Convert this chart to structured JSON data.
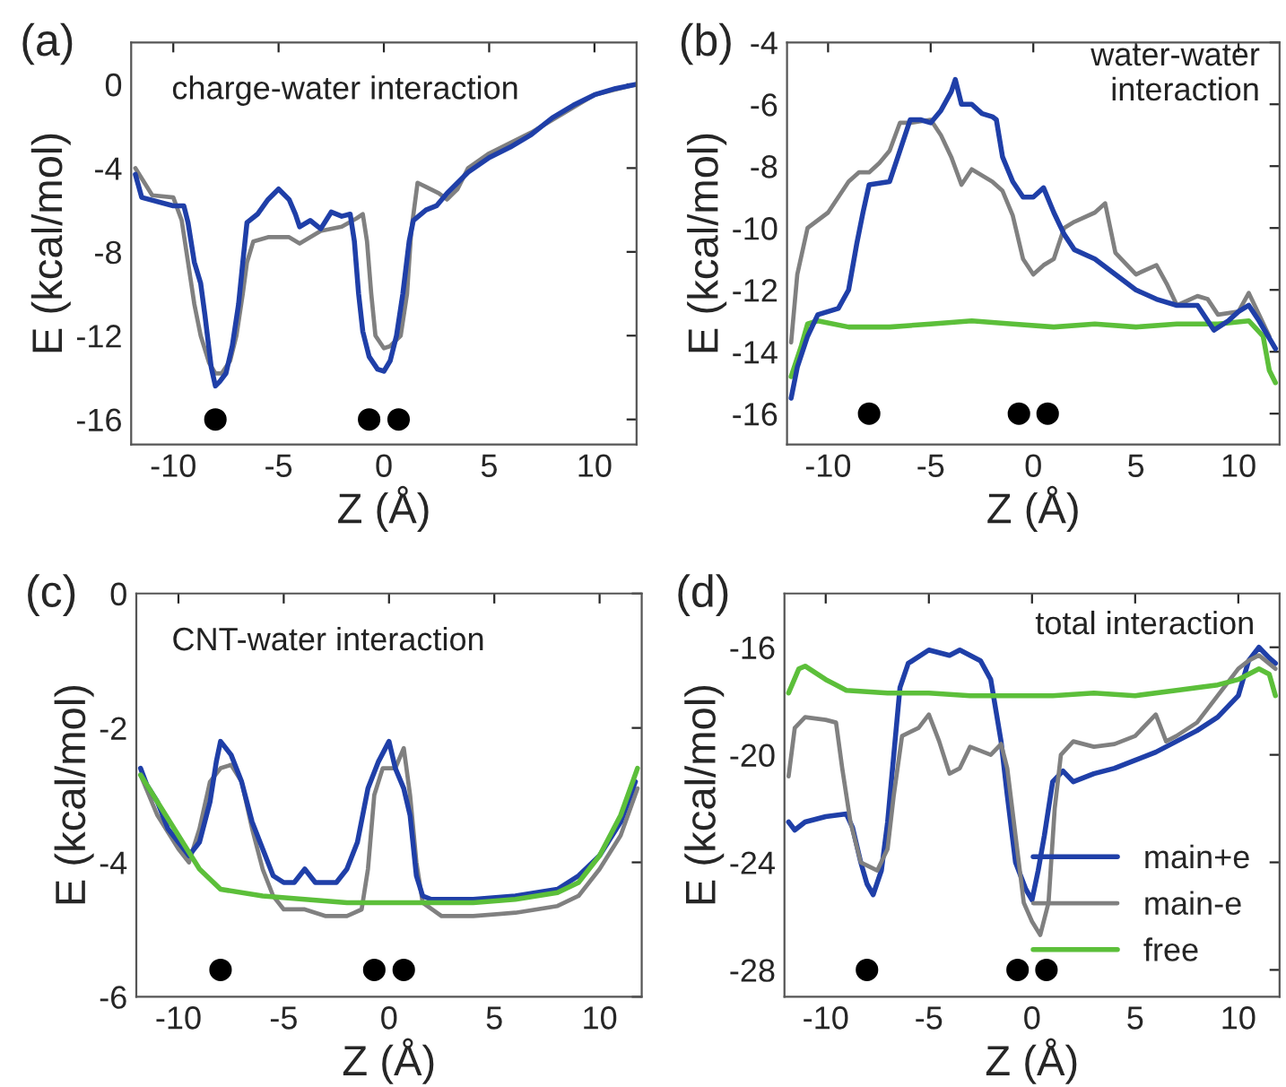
{
  "chart_data": [
    {
      "type": "line",
      "title": "(a)",
      "xlabel": "Z (Å)",
      "ylabel": "E (kcal/mol)",
      "annotations": [
        "charge-water interaction"
      ],
      "xlim": [
        -12,
        12
      ],
      "ylim": [
        -17.2,
        2
      ],
      "xticks": [
        -10,
        -5,
        0,
        5,
        10
      ],
      "yticks": [
        -16,
        -12,
        -8,
        -4,
        0
      ],
      "legend": false,
      "series": [
        {
          "color": "#808080",
          "x": [
            -11.8,
            -11,
            -10,
            -9.6,
            -9.3,
            -9,
            -8.7,
            -8.3,
            -8,
            -7.7,
            -7.3,
            -7,
            -6.7,
            -6.5,
            -6.2,
            -5.5,
            -4.5,
            -4,
            -3.5,
            -3,
            -2,
            -1.3,
            -1,
            -0.8,
            -0.6,
            -0.4,
            0,
            0.3,
            0.8,
            1.1,
            1.3,
            1.6,
            2,
            2.6,
            3,
            3.5,
            4,
            5,
            6,
            7,
            8,
            10,
            12
          ],
          "values": [
            -4.0,
            -5.3,
            -5.4,
            -6.5,
            -8.5,
            -10.5,
            -12,
            -13.3,
            -13.8,
            -13.8,
            -13.2,
            -12,
            -10,
            -8.5,
            -7.5,
            -7.3,
            -7.3,
            -7.6,
            -7.3,
            -7,
            -6.8,
            -6.4,
            -6.2,
            -7.5,
            -10,
            -12,
            -12.6,
            -12.5,
            -12,
            -10,
            -7,
            -4.7,
            -4.9,
            -5.2,
            -5.5,
            -5,
            -4,
            -3.3,
            -2.8,
            -2.3,
            -1.7,
            -0.5,
            0
          ]
        },
        {
          "color": "#1f3fa8",
          "x": [
            -11.8,
            -11.5,
            -10,
            -9.5,
            -9.3,
            -9,
            -8.7,
            -8.5,
            -8.2,
            -8,
            -7.8,
            -7.5,
            -7.2,
            -6.9,
            -6.7,
            -6.5,
            -6,
            -5.5,
            -5,
            -4.5,
            -4.2,
            -4,
            -3.5,
            -3,
            -2.5,
            -2,
            -1.6,
            -1.4,
            -1.2,
            -1,
            -0.7,
            -0.3,
            0,
            0.3,
            0.6,
            0.9,
            1.2,
            1.4,
            2,
            2.5,
            3,
            4,
            5,
            6,
            7,
            8,
            9,
            10,
            11,
            12
          ],
          "values": [
            -4.3,
            -5.4,
            -5.8,
            -5.8,
            -6.6,
            -8.5,
            -9.5,
            -11,
            -13.5,
            -14.4,
            -14.2,
            -13.8,
            -12.5,
            -10.5,
            -8.5,
            -6.6,
            -6.2,
            -5.5,
            -5.0,
            -5.5,
            -6.2,
            -6.8,
            -6.5,
            -6.9,
            -6.1,
            -6.3,
            -6.2,
            -7.5,
            -10,
            -11.8,
            -13,
            -13.6,
            -13.7,
            -13.2,
            -12,
            -10,
            -7.5,
            -6.5,
            -6,
            -5.8,
            -5.2,
            -4.2,
            -3.5,
            -3,
            -2.4,
            -1.6,
            -1,
            -0.5,
            -0.2,
            0
          ]
        },
        {
          "type": "scatter",
          "marker": "circle",
          "color": "#000000",
          "x": [
            -8,
            -0.7,
            0.7
          ],
          "values": [
            -16,
            -16,
            -16
          ]
        }
      ]
    },
    {
      "type": "line",
      "title": "(b)",
      "xlabel": "Z (Å)",
      "ylabel": "E (kcal/mol)",
      "annotations": [
        "water-water\ninteraction"
      ],
      "xlim": [
        -12,
        12
      ],
      "ylim": [
        -17,
        -4
      ],
      "xticks": [
        -10,
        -5,
        0,
        5,
        10
      ],
      "yticks": [
        -16,
        -14,
        -12,
        -10,
        -8,
        -6,
        -4
      ],
      "legend": false,
      "series": [
        {
          "color": "#5cbf3a",
          "x": [
            -11.8,
            -11.3,
            -11,
            -10.5,
            -9,
            -7,
            -5,
            -3,
            -1,
            1,
            3,
            5,
            7,
            9,
            10.5,
            11.2,
            11.5,
            11.8
          ],
          "values": [
            -14.8,
            -13.8,
            -13.1,
            -13.0,
            -13.2,
            -13.2,
            -13.1,
            -13,
            -13.1,
            -13.2,
            -13.1,
            -13.2,
            -13.1,
            -13.1,
            -13,
            -13.5,
            -14.6,
            -15
          ]
        },
        {
          "color": "#808080",
          "x": [
            -11.8,
            -11.5,
            -11,
            -10,
            -9,
            -8.5,
            -8,
            -7.5,
            -7,
            -6.5,
            -6,
            -5,
            -4.5,
            -4,
            -3.5,
            -3,
            -2,
            -1.5,
            -1,
            -0.5,
            0,
            0.5,
            1,
            1.5,
            2,
            3,
            3.5,
            4,
            5,
            6,
            6.5,
            7,
            8,
            8.5,
            9,
            10,
            10.5,
            11,
            11.5
          ],
          "values": [
            -13.7,
            -11.5,
            -10,
            -9.5,
            -8.5,
            -8.2,
            -8.2,
            -7.9,
            -7.5,
            -6.6,
            -6.6,
            -6.5,
            -7,
            -7.7,
            -8.6,
            -8.1,
            -8.5,
            -8.8,
            -9.6,
            -11,
            -11.5,
            -11.2,
            -11,
            -10,
            -9.8,
            -9.5,
            -9.2,
            -10.8,
            -11.5,
            -11.2,
            -11.8,
            -12.5,
            -12.2,
            -12.3,
            -12.8,
            -12.7,
            -12.1,
            -12.8,
            -13.5
          ]
        },
        {
          "color": "#1f3fa8",
          "x": [
            -11.8,
            -11.5,
            -11,
            -10.5,
            -9.5,
            -9,
            -8.6,
            -8.3,
            -8,
            -7,
            -6.5,
            -6,
            -5.5,
            -5,
            -4.5,
            -4,
            -3.8,
            -3.5,
            -3,
            -2.5,
            -2,
            -1.8,
            -1.5,
            -1,
            -0.5,
            0,
            0.5,
            1,
            1.5,
            2,
            3,
            4,
            5,
            6,
            7,
            8,
            8.8,
            9.5,
            10,
            10.5,
            11,
            11.8
          ],
          "values": [
            -15.5,
            -14.5,
            -13.5,
            -12.8,
            -12.6,
            -12,
            -10.5,
            -9.5,
            -8.6,
            -8.5,
            -7.5,
            -6.5,
            -6.5,
            -6.6,
            -6.2,
            -5.6,
            -5.2,
            -6,
            -6,
            -6.3,
            -6.4,
            -6.5,
            -7.7,
            -8.5,
            -9,
            -9,
            -8.7,
            -9.5,
            -10.2,
            -10.7,
            -11,
            -11.5,
            -12,
            -12.3,
            -12.5,
            -12.5,
            -13.3,
            -13,
            -12.7,
            -12.5,
            -13,
            -13.9
          ]
        },
        {
          "type": "scatter",
          "marker": "circle",
          "color": "#000000",
          "x": [
            -8,
            -0.7,
            0.7
          ],
          "values": [
            -16,
            -16,
            -16
          ]
        }
      ]
    },
    {
      "type": "line",
      "title": "(c)",
      "xlabel": "Z (Å)",
      "ylabel": "E (kcal/mol)",
      "annotations": [
        "CNT-water interaction"
      ],
      "xlim": [
        -12,
        12
      ],
      "ylim": [
        -6,
        0
      ],
      "xticks": [
        -10,
        -5,
        0,
        5,
        10
      ],
      "yticks": [
        -6,
        -4,
        -2,
        0
      ],
      "legend": false,
      "series": [
        {
          "color": "#808080",
          "x": [
            -11.8,
            -11,
            -10,
            -9.5,
            -9,
            -8.5,
            -8,
            -7.5,
            -7,
            -6.5,
            -6,
            -5.5,
            -5,
            -4,
            -3,
            -2,
            -1.3,
            -1,
            -0.7,
            -0.3,
            0.3,
            0.7,
            1,
            1.3,
            1.6,
            2.5,
            4,
            6,
            8,
            9,
            10,
            11,
            11.8
          ],
          "values": [
            -2.7,
            -3.3,
            -3.8,
            -4.0,
            -3.5,
            -2.8,
            -2.6,
            -2.55,
            -2.8,
            -3.5,
            -4.1,
            -4.5,
            -4.7,
            -4.7,
            -4.8,
            -4.8,
            -4.7,
            -4.1,
            -3.0,
            -2.6,
            -2.6,
            -2.3,
            -3,
            -4,
            -4.6,
            -4.8,
            -4.8,
            -4.75,
            -4.65,
            -4.5,
            -4.1,
            -3.6,
            -2.9
          ]
        },
        {
          "color": "#1f3fa8",
          "x": [
            -11.8,
            -11.5,
            -11,
            -10.5,
            -10,
            -9.5,
            -9,
            -8.5,
            -8.2,
            -8,
            -7.5,
            -7,
            -6.5,
            -6,
            -5.5,
            -5,
            -4.5,
            -4,
            -3.5,
            -3,
            -2.5,
            -2,
            -1.5,
            -1,
            -0.5,
            0,
            0.3,
            0.7,
            1,
            1.3,
            1.6,
            2,
            4,
            6,
            8,
            9,
            10,
            11,
            11.7
          ],
          "values": [
            -2.6,
            -2.85,
            -3.1,
            -3.5,
            -3.7,
            -3.9,
            -3.7,
            -3.1,
            -2.5,
            -2.2,
            -2.4,
            -2.8,
            -3.4,
            -3.8,
            -4.2,
            -4.3,
            -4.3,
            -4.1,
            -4.3,
            -4.3,
            -4.3,
            -4.1,
            -3.7,
            -2.9,
            -2.5,
            -2.2,
            -2.6,
            -2.9,
            -3.3,
            -4.2,
            -4.5,
            -4.55,
            -4.55,
            -4.5,
            -4.4,
            -4.2,
            -3.9,
            -3.4,
            -2.8
          ]
        },
        {
          "color": "#5cbf3a",
          "x": [
            -11.8,
            -11,
            -10,
            -9,
            -8,
            -6,
            -4,
            -2,
            0,
            2,
            4,
            6,
            8,
            9,
            10,
            11,
            11.8
          ],
          "values": [
            -2.7,
            -3.1,
            -3.6,
            -4.1,
            -4.4,
            -4.5,
            -4.55,
            -4.6,
            -4.6,
            -4.6,
            -4.6,
            -4.55,
            -4.45,
            -4.3,
            -3.9,
            -3.3,
            -2.6
          ]
        },
        {
          "type": "scatter",
          "marker": "circle",
          "color": "#000000",
          "x": [
            -8,
            -0.7,
            0.7
          ],
          "values": [
            -5.6,
            -5.6,
            -5.6
          ]
        }
      ]
    },
    {
      "type": "line",
      "title": "(d)",
      "xlabel": "Z (Å)",
      "ylabel": "E (kcal/mol)",
      "annotations": [
        "total interaction"
      ],
      "xlim": [
        -12,
        12
      ],
      "ylim": [
        -29,
        -14
      ],
      "xticks": [
        -10,
        -5,
        0,
        5,
        10
      ],
      "yticks": [
        -28,
        -24,
        -20,
        -16
      ],
      "legend": "lower right",
      "series": [
        {
          "name": "main+e",
          "color": "#1f3fa8",
          "x": [
            -11.8,
            -11.5,
            -11,
            -10,
            -9,
            -8.7,
            -8.3,
            -8,
            -7.7,
            -7.3,
            -7,
            -6.7,
            -6.4,
            -6,
            -5,
            -4,
            -3.5,
            -3,
            -2.5,
            -2,
            -1.5,
            -1.2,
            -0.8,
            -0.3,
            0,
            0.3,
            0.6,
            1,
            1.5,
            2,
            3,
            4,
            5,
            6,
            7,
            8,
            9,
            10,
            10.5,
            11,
            11.5,
            11.8
          ],
          "values": [
            -22.5,
            -22.8,
            -22.5,
            -22.3,
            -22.2,
            -22.7,
            -24,
            -24.8,
            -25.2,
            -24.3,
            -22.5,
            -20,
            -17.5,
            -16.6,
            -16.1,
            -16.3,
            -16.1,
            -16.3,
            -16.5,
            -17.2,
            -19.5,
            -21.5,
            -24,
            -25,
            -25.4,
            -24.3,
            -23,
            -21,
            -20.6,
            -21,
            -20.7,
            -20.5,
            -20.2,
            -19.9,
            -19.5,
            -19.1,
            -18.6,
            -17.8,
            -16.5,
            -16,
            -16.4,
            -16.6
          ]
        },
        {
          "name": "main-e",
          "color": "#808080",
          "x": [
            -11.8,
            -11.5,
            -11,
            -10,
            -9.5,
            -9.2,
            -8.8,
            -8.3,
            -7.5,
            -7,
            -6.7,
            -6.3,
            -5.5,
            -5,
            -4.5,
            -4,
            -3.5,
            -3,
            -2,
            -1.5,
            -1.2,
            -0.8,
            -0.4,
            0,
            0.4,
            0.8,
            1.1,
            1.4,
            2,
            3,
            4,
            5,
            6,
            6.5,
            7,
            8,
            9,
            10,
            10.5,
            11,
            11.8
          ],
          "values": [
            -20.8,
            -19,
            -18.6,
            -18.7,
            -18.8,
            -20.5,
            -22.5,
            -24,
            -24.3,
            -23.5,
            -21.5,
            -19.3,
            -19,
            -18.5,
            -19.5,
            -20.7,
            -20.5,
            -19.7,
            -20,
            -19.6,
            -20.5,
            -23,
            -25.5,
            -26.2,
            -26.7,
            -25.5,
            -22,
            -20,
            -19.5,
            -19.7,
            -19.6,
            -19.3,
            -18.5,
            -19.5,
            -19.3,
            -18.8,
            -17.8,
            -16.8,
            -16.5,
            -16.3,
            -16.8
          ]
        },
        {
          "name": "free",
          "color": "#5cbf3a",
          "x": [
            -11.8,
            -11.3,
            -11,
            -10,
            -9,
            -7,
            -5,
            -3,
            -1,
            1,
            3,
            5,
            7,
            9,
            10,
            11,
            11.5,
            11.8
          ],
          "values": [
            -17.7,
            -16.8,
            -16.7,
            -17.2,
            -17.6,
            -17.7,
            -17.7,
            -17.8,
            -17.8,
            -17.8,
            -17.7,
            -17.8,
            -17.6,
            -17.4,
            -17.2,
            -16.8,
            -17,
            -17.8
          ]
        },
        {
          "type": "scatter",
          "marker": "circle",
          "color": "#000000",
          "x": [
            -8,
            -0.7,
            0.7
          ],
          "values": [
            -28,
            -28,
            -28
          ]
        }
      ]
    }
  ]
}
